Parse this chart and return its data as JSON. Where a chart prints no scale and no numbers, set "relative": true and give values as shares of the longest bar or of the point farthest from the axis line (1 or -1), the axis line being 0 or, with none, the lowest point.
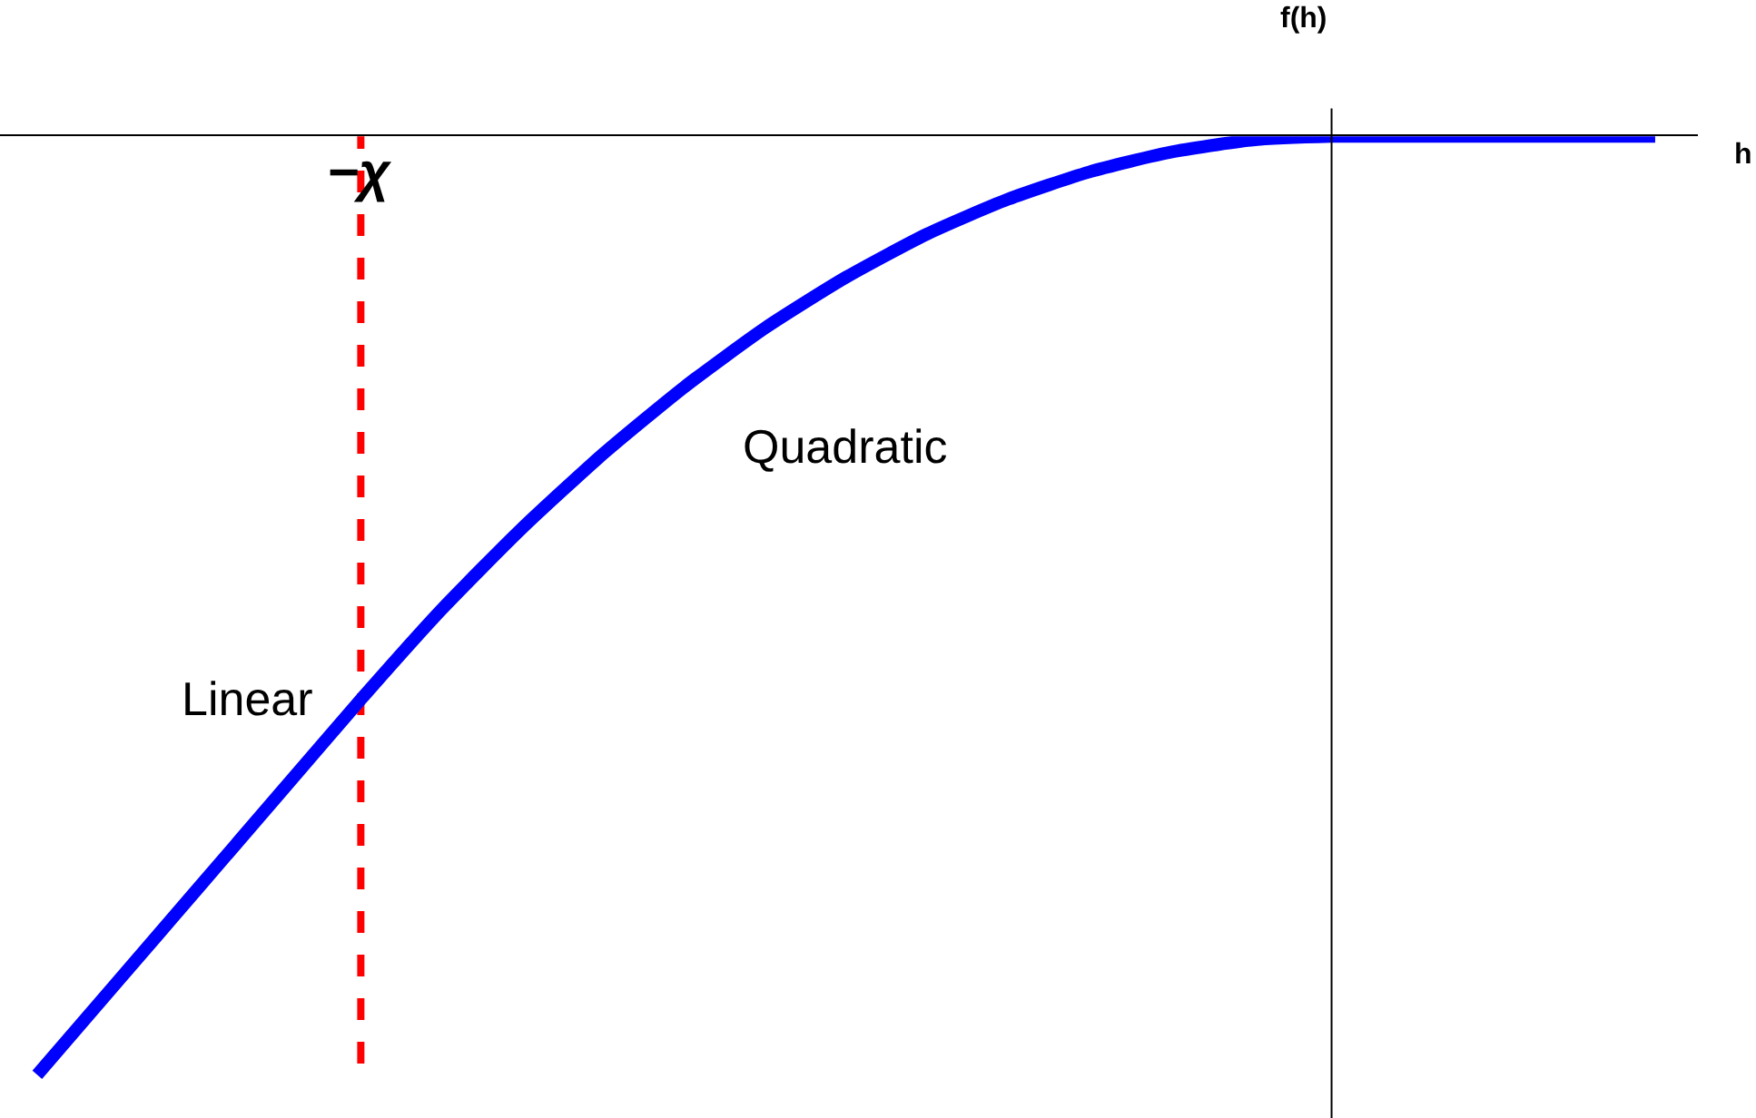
{
  "chart_data": {
    "type": "line",
    "relative": true,
    "xlabel": "h",
    "ylabel": "f(h)",
    "tick_labels": false,
    "categories": [
      null,
      null,
      null,
      null,
      null,
      null,
      null,
      null,
      null,
      null,
      null,
      null,
      null,
      null,
      null,
      null,
      null,
      null,
      null,
      null,
      null
    ],
    "series": [
      {
        "color": "#0000ff",
        "values": [
          -1.0,
          -0.9,
          -0.8,
          -0.7,
          -0.6,
          -0.504,
          -0.417,
          -0.338,
          -0.267,
          -0.204,
          -0.15,
          -0.104,
          -0.067,
          -0.038,
          -0.017,
          -0.004,
          0,
          0,
          0,
          0,
          0
        ]
      }
    ],
    "ref_lines": [
      {
        "axis": "x",
        "label": "−χ",
        "color": "#ff0000",
        "line_style": "dashed"
      }
    ],
    "annotations": [
      "Linear",
      "Quadratic"
    ]
  }
}
